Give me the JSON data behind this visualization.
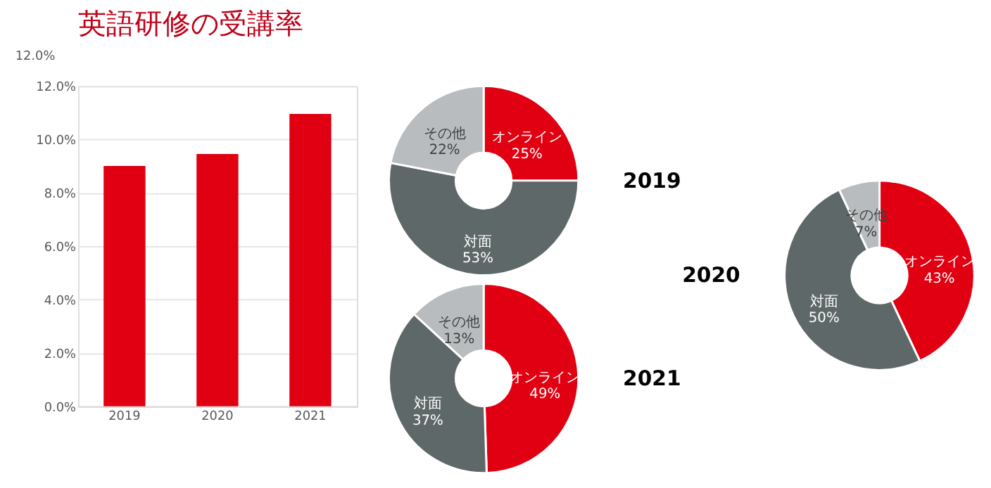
{
  "chart_data": [
    {
      "type": "bar",
      "title": "英語研修の受講率",
      "annotations": [
        "12.0%"
      ],
      "categories": [
        "2019",
        "2020",
        "2021"
      ],
      "values": [
        9.0,
        9.45,
        10.95
      ],
      "color": "#e00012",
      "ylim": [
        0,
        12
      ],
      "yticks": [
        {
          "value": 0,
          "label": "0.0%"
        },
        {
          "value": 2,
          "label": "2.0%"
        },
        {
          "value": 4,
          "label": "4.0%"
        },
        {
          "value": 6,
          "label": "6.0%"
        },
        {
          "value": 8,
          "label": "8.0%"
        },
        {
          "value": 10,
          "label": "10.0%"
        },
        {
          "value": 12,
          "label": "12.0%"
        }
      ],
      "grid": "y",
      "legend": false
    },
    {
      "type": "donut",
      "title": "2019",
      "categories": [
        "オンライン",
        "対面",
        "その他"
      ],
      "values": [
        25,
        53,
        22
      ],
      "colors": [
        "#e00012",
        "#5f6868",
        "#b9bcbf"
      ],
      "value_labels": [
        "25%",
        "53%",
        "22%"
      ],
      "legend": false
    },
    {
      "type": "donut",
      "title": "2020",
      "categories": [
        "オンライン",
        "対面",
        "その他"
      ],
      "values": [
        43,
        50,
        7
      ],
      "colors": [
        "#e00012",
        "#5f6868",
        "#b9bcbf"
      ],
      "value_labels": [
        "43%",
        "50%",
        "7%"
      ],
      "legend": false
    },
    {
      "type": "donut",
      "title": "2021",
      "categories": [
        "オンライン",
        "対面",
        "その他"
      ],
      "values": [
        49,
        37,
        13
      ],
      "colors": [
        "#e00012",
        "#5f6868",
        "#b9bcbf"
      ],
      "value_labels": [
        "49%",
        "37%",
        "13%"
      ],
      "legend": false
    }
  ]
}
